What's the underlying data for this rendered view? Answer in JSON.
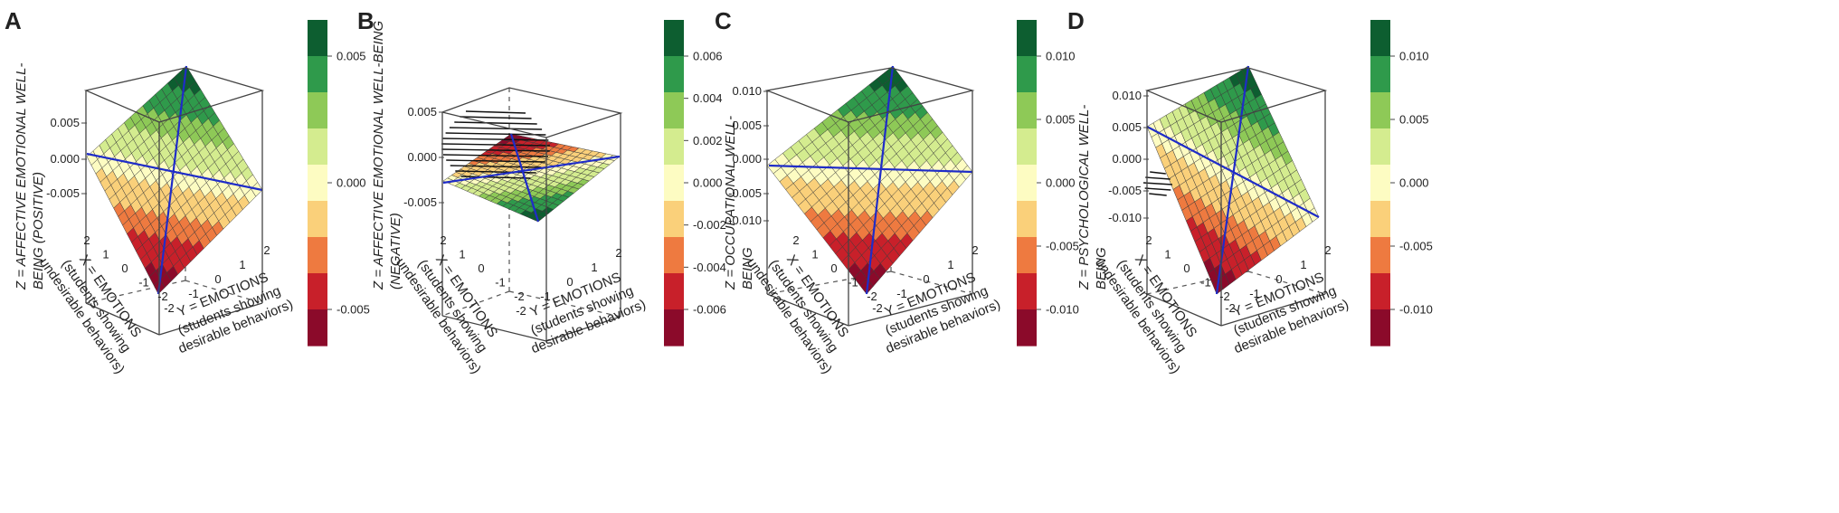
{
  "figure": {
    "x_label_lines": [
      "X = EMOTIONS",
      "(students showing",
      "undesirable behaviors)"
    ],
    "y_label_lines": [
      "Y = EMOTIONS",
      "(students showing",
      "desirable behaviors)"
    ],
    "xy_ticks": [
      "2",
      "1",
      "0",
      "-1",
      "-2"
    ],
    "colors": [
      "#8b0a2a",
      "#c8202a",
      "#ee7a40",
      "#fad07a",
      "#fdfcc2",
      "#d4ec8f",
      "#8ec957",
      "#2f9a4b",
      "#0d5e30"
    ],
    "surface_line_color": "#1f2cc8"
  },
  "chart_data": [
    {
      "panel": "A",
      "type": "surface3d",
      "zlabel_lines": [
        "Z = AFFECTIVE EMOTIONAL WELL-",
        "BEING (POSITIVE)"
      ],
      "z_ticks": [
        "0.005",
        "0.000",
        "-0.005"
      ],
      "legend_ticks": [
        "0.005",
        "0.000",
        "-0.005"
      ],
      "x_range": [
        -2,
        2
      ],
      "y_range": [
        -2,
        2
      ],
      "z_range": [
        -0.009,
        0.009
      ]
    },
    {
      "panel": "B",
      "type": "surface3d",
      "zlabel_lines": [
        "Z = AFFECTIVE EMOTIONAL WELL-BEING",
        "(NEGATIVE)"
      ],
      "z_ticks": [
        "0.005",
        "0.000",
        "-0.005"
      ],
      "legend_ticks": [
        "0.006",
        "0.004",
        "0.002",
        "0.000",
        "-0.002",
        "-0.004",
        "-0.006"
      ],
      "x_range": [
        -2,
        2
      ],
      "y_range": [
        -2,
        2
      ],
      "z_range": [
        -0.007,
        0.007
      ]
    },
    {
      "panel": "C",
      "type": "surface3d",
      "zlabel_lines": [
        "Z = OCCUPATIONAL WELL-",
        "BEING"
      ],
      "z_ticks": [
        "0.010",
        "0.005",
        "0.000",
        "-0.005",
        "-0.010"
      ],
      "legend_ticks": [
        "0.010",
        "0.005",
        "0.000",
        "-0.005",
        "-0.010"
      ],
      "x_range": [
        -2,
        2
      ],
      "y_range": [
        -2,
        2
      ],
      "z_range": [
        -0.012,
        0.012
      ]
    },
    {
      "panel": "D",
      "type": "surface3d",
      "zlabel_lines": [
        "Z = PSYCHOLOGICAL WELL-",
        "BEING"
      ],
      "z_ticks": [
        "0.010",
        "0.005",
        "0.000",
        "-0.005",
        "-0.010"
      ],
      "legend_ticks": [
        "0.010",
        "0.005",
        "0.000",
        "-0.005",
        "-0.010"
      ],
      "x_range": [
        -2,
        2
      ],
      "y_range": [
        -2,
        2
      ],
      "z_range": [
        -0.012,
        0.012
      ]
    }
  ]
}
